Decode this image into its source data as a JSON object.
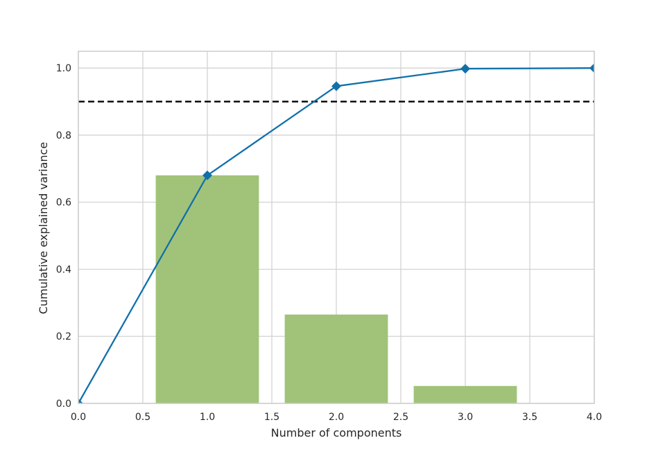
{
  "chart_data": {
    "type": "bar",
    "title": "",
    "xlabel": "Number of components",
    "ylabel": "Cumulative explained variance",
    "xlim": [
      0.0,
      4.0
    ],
    "ylim": [
      0.0,
      1.05
    ],
    "xticks": [
      "0.0",
      "0.5",
      "1.0",
      "1.5",
      "2.0",
      "2.5",
      "3.0",
      "3.5",
      "4.0"
    ],
    "yticks": [
      "0.0",
      "0.2",
      "0.4",
      "0.6",
      "0.8",
      "1.0"
    ],
    "grid": true,
    "legend": "none",
    "bars": {
      "x": [
        1,
        2,
        3
      ],
      "values": [
        0.68,
        0.265,
        0.052
      ],
      "width": 0.8,
      "color": "#a1c379"
    },
    "series": [
      {
        "type": "line",
        "x": [
          0,
          1,
          2,
          3,
          4
        ],
        "y": [
          0.0,
          0.68,
          0.946,
          0.998,
          1.0
        ],
        "marker": "diamond",
        "color": "#1170aa"
      }
    ],
    "threshold": {
      "y": 0.9,
      "style": "dashed",
      "color": "#000000"
    },
    "colors": {
      "grid": "#d3d3d3",
      "spine": "#cccccc"
    }
  }
}
